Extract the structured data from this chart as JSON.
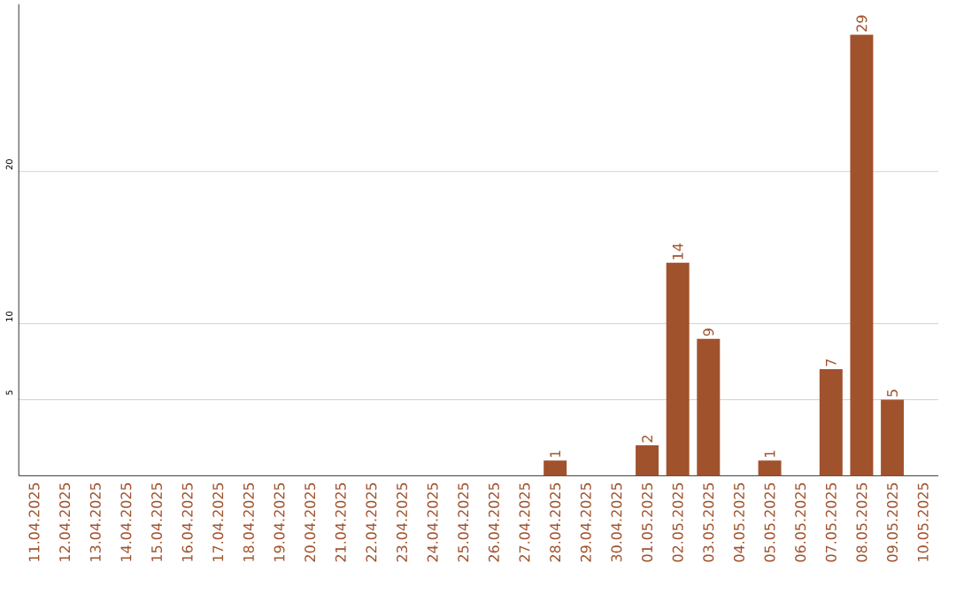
{
  "chart_data": {
    "type": "bar",
    "categories": [
      "11.04.2025",
      "12.04.2025",
      "13.04.2025",
      "14.04.2025",
      "15.04.2025",
      "16.04.2025",
      "17.04.2025",
      "18.04.2025",
      "19.04.2025",
      "20.04.2025",
      "21.04.2025",
      "22.04.2025",
      "23.04.2025",
      "24.04.2025",
      "25.04.2025",
      "26.04.2025",
      "27.04.2025",
      "28.04.2025",
      "29.04.2025",
      "30.04.2025",
      "01.05.2025",
      "02.05.2025",
      "03.05.2025",
      "04.05.2025",
      "05.05.2025",
      "06.05.2025",
      "07.05.2025",
      "08.05.2025",
      "09.05.2025",
      "10.05.2025"
    ],
    "values": [
      0,
      0,
      0,
      0,
      0,
      0,
      0,
      0,
      0,
      0,
      0,
      0,
      0,
      0,
      0,
      0,
      0,
      1,
      0,
      0,
      2,
      14,
      9,
      0,
      1,
      0,
      7,
      29,
      5,
      0
    ],
    "value_labels": [
      null,
      null,
      null,
      null,
      null,
      null,
      null,
      null,
      null,
      null,
      null,
      null,
      null,
      null,
      null,
      null,
      null,
      "1",
      null,
      null,
      "2",
      "14",
      "9",
      null,
      "1",
      null,
      "7",
      "29",
      "5",
      null
    ],
    "color": "#a0522d",
    "ylim": [
      0,
      31
    ],
    "yticks": [
      5,
      10,
      20
    ],
    "grid": "y"
  }
}
